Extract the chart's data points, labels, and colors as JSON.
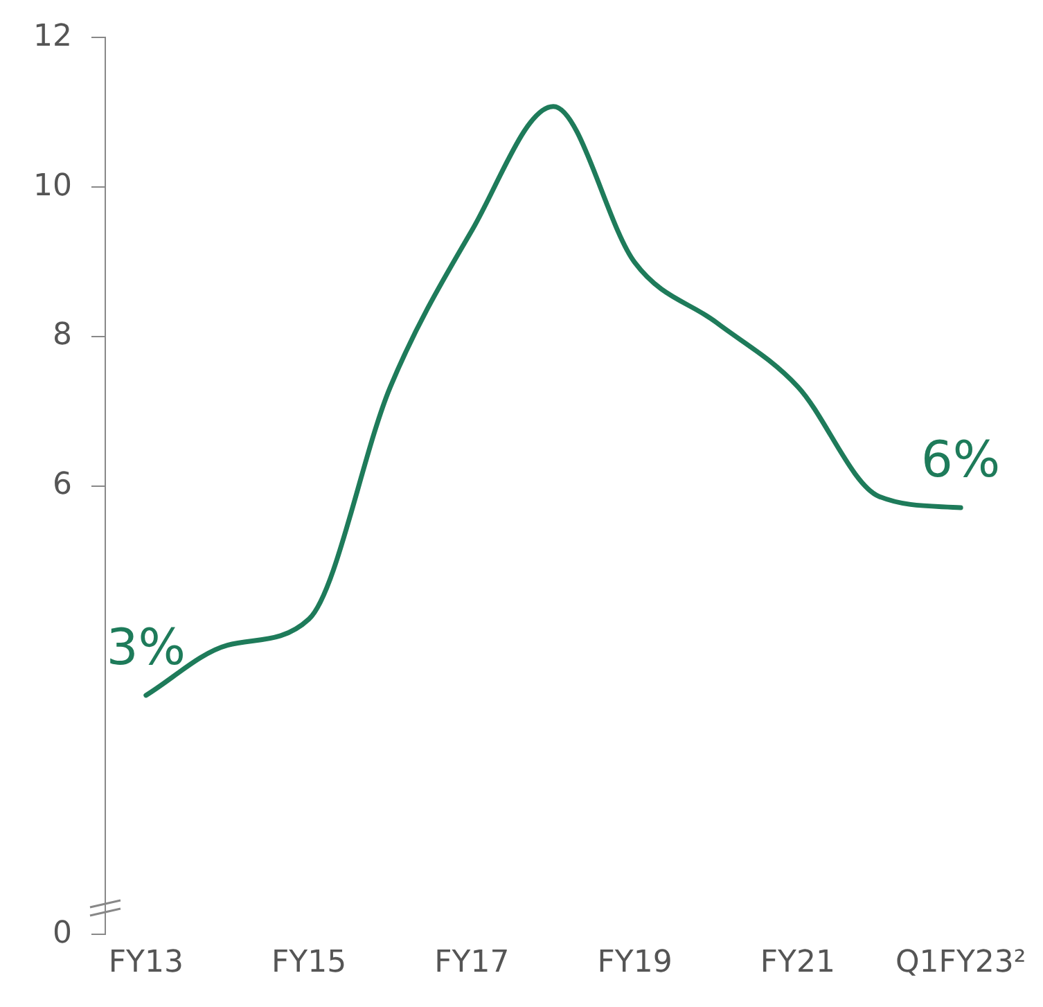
{
  "chart_data": {
    "type": "line",
    "categories": [
      "FY13",
      null,
      "FY15",
      null,
      "FY17",
      null,
      "FY19",
      null,
      "FY21",
      null,
      "Q1FY23²"
    ],
    "series": [
      {
        "color": "#1e7b5a",
        "values": [
          3.2,
          3.87,
          4.22,
          7.33,
          9.42,
          11.08,
          8.99,
          8.19,
          7.33,
          5.86,
          5.71
        ],
        "value_labels": [
          "3%",
          null,
          null,
          null,
          null,
          null,
          null,
          null,
          null,
          null,
          "6%"
        ]
      }
    ],
    "ylim": [
      0,
      12
    ],
    "yticks": [
      0,
      6,
      8,
      10,
      12
    ],
    "grid": false,
    "legend": false,
    "marker": "none",
    "line_style": "solid"
  }
}
